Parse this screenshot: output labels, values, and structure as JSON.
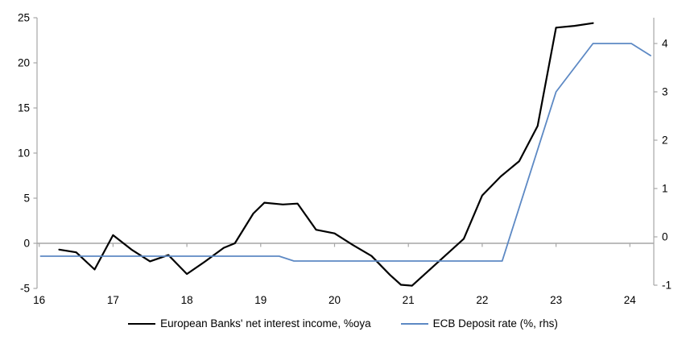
{
  "chart_data": {
    "type": "line",
    "title": "",
    "x_axis": {
      "range": [
        15.95,
        24.45
      ],
      "ticks": [
        {
          "value": 16,
          "label": "16"
        },
        {
          "value": 17,
          "label": "17"
        },
        {
          "value": 18,
          "label": "18"
        },
        {
          "value": 19,
          "label": "19"
        },
        {
          "value": 20,
          "label": "20"
        },
        {
          "value": 21,
          "label": "21"
        },
        {
          "value": 22,
          "label": "22"
        },
        {
          "value": 23,
          "label": "23"
        },
        {
          "value": 24,
          "label": "24"
        }
      ]
    },
    "left_axis": {
      "range": [
        -5,
        25
      ],
      "ticks": [
        {
          "value": 25,
          "label": "25"
        },
        {
          "value": 20,
          "label": "20"
        },
        {
          "value": 15,
          "label": "15"
        },
        {
          "value": 10,
          "label": "10"
        },
        {
          "value": 5,
          "label": "5"
        },
        {
          "value": 0,
          "label": "0"
        },
        {
          "value": -5,
          "label": "-5"
        }
      ]
    },
    "right_axis": {
      "range": [
        -1.13,
        4.53
      ],
      "ticks": [
        {
          "value": 4,
          "label": "4"
        },
        {
          "value": 3,
          "label": "3"
        },
        {
          "value": 2,
          "label": "2"
        },
        {
          "value": 1,
          "label": "1"
        },
        {
          "value": 0,
          "label": "0"
        },
        {
          "value": -1,
          "label": "-1"
        }
      ]
    },
    "grid": "zero-line-only",
    "legend_position": "bottom-center",
    "series": [
      {
        "name": "European Banks' net interest income, %oya",
        "axis": "left",
        "color": "#000000",
        "width": 2.2,
        "points": [
          [
            16.27,
            -0.7
          ],
          [
            16.5,
            -1.0
          ],
          [
            16.75,
            -2.9
          ],
          [
            17.0,
            0.9
          ],
          [
            17.25,
            -0.7
          ],
          [
            17.5,
            -2.0
          ],
          [
            17.75,
            -1.3
          ],
          [
            18.0,
            -3.4
          ],
          [
            18.25,
            -2.0
          ],
          [
            18.5,
            -0.5
          ],
          [
            18.65,
            0.0
          ],
          [
            18.9,
            3.3
          ],
          [
            19.05,
            4.5
          ],
          [
            19.3,
            4.3
          ],
          [
            19.5,
            4.4
          ],
          [
            19.75,
            1.5
          ],
          [
            20.0,
            1.1
          ],
          [
            20.25,
            -0.2
          ],
          [
            20.5,
            -1.4
          ],
          [
            20.75,
            -3.5
          ],
          [
            20.9,
            -4.6
          ],
          [
            21.05,
            -4.7
          ],
          [
            21.75,
            0.5
          ],
          [
            22.0,
            5.3
          ],
          [
            22.25,
            7.4
          ],
          [
            22.5,
            9.1
          ],
          [
            22.75,
            13.0
          ],
          [
            23.0,
            23.9
          ],
          [
            23.25,
            24.1
          ],
          [
            23.5,
            24.4
          ]
        ]
      },
      {
        "name": "ECB Deposit rate (%, rhs)",
        "axis": "right",
        "color": "#5d89c4",
        "width": 1.8,
        "points": [
          [
            16.02,
            -0.4
          ],
          [
            19.25,
            -0.4
          ],
          [
            19.45,
            -0.5
          ],
          [
            22.27,
            -0.5
          ],
          [
            23.0,
            3.0
          ],
          [
            23.5,
            4.0
          ],
          [
            24.02,
            4.0
          ],
          [
            24.28,
            3.75
          ]
        ]
      }
    ]
  },
  "colors": {
    "background": "#ffffff",
    "axis": "#a6a6a6",
    "text": "#000000",
    "series_black": "#000000",
    "series_blue": "#5d89c4"
  }
}
